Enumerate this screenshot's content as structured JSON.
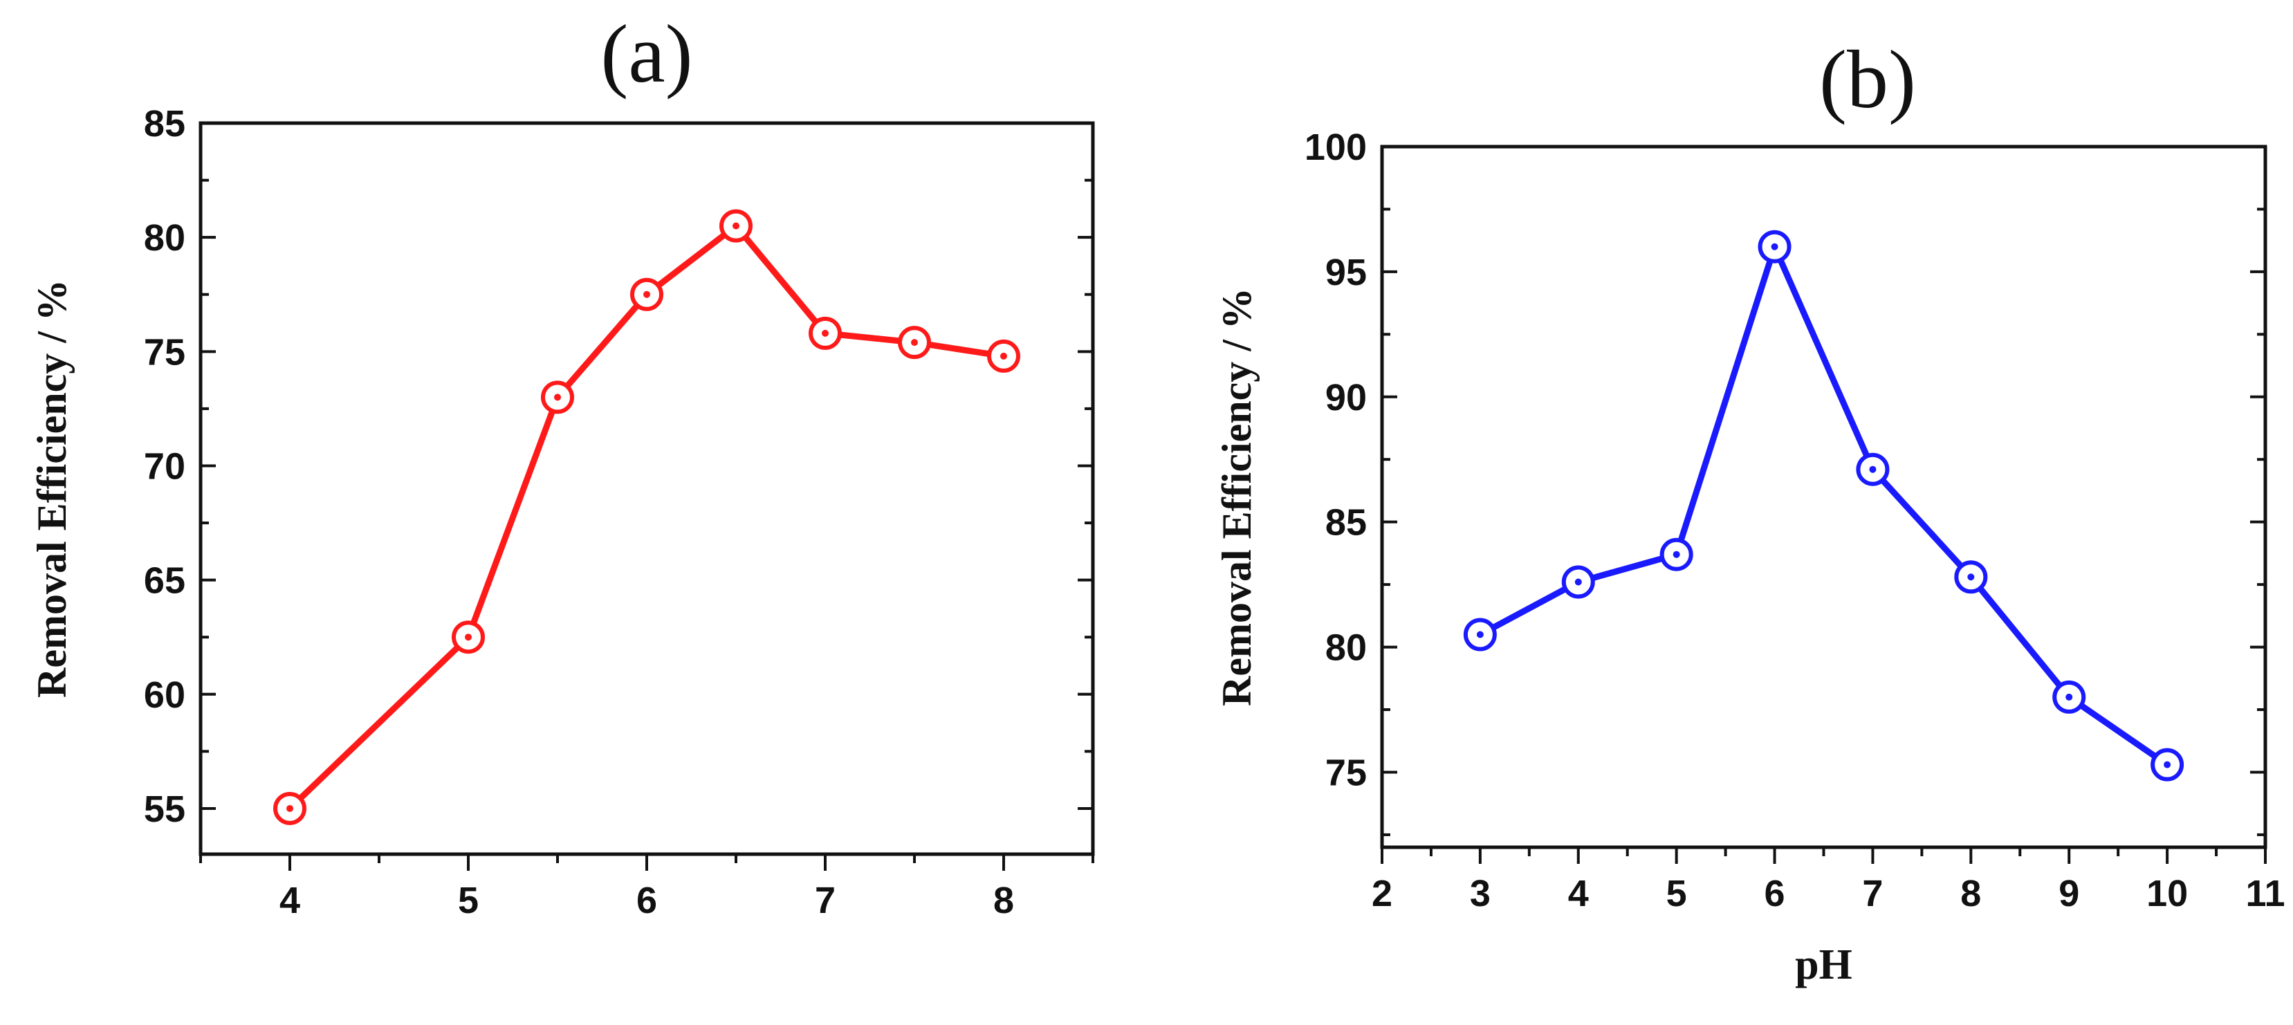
{
  "chart_data": [
    {
      "type": "line",
      "panel_label": "(a)",
      "title": "",
      "xlabel": "",
      "ylabel": "Removal Efficiency / %",
      "x": [
        4,
        5,
        5.5,
        6,
        6.5,
        7,
        7.5,
        8
      ],
      "xticks": [
        4,
        5,
        6,
        7,
        8
      ],
      "yticks": [
        55,
        60,
        65,
        70,
        75,
        80,
        85
      ],
      "xlim": [
        3.5,
        8.5
      ],
      "ylim": [
        53,
        85
      ],
      "grid": false,
      "series": [
        {
          "color": "#ff1a1a",
          "marker": "open-circle-dot",
          "values": [
            55.0,
            62.5,
            73.0,
            77.5,
            80.5,
            75.8,
            75.4,
            74.8
          ]
        }
      ]
    },
    {
      "type": "line",
      "panel_label": "(b)",
      "title": "",
      "xlabel": "pH",
      "ylabel": "Removal Efficiency / %",
      "x": [
        3,
        4,
        5,
        6,
        7,
        8,
        9,
        10
      ],
      "xticks": [
        2,
        3,
        4,
        5,
        6,
        7,
        8,
        9,
        10,
        11
      ],
      "yticks": [
        75,
        80,
        85,
        90,
        95,
        100
      ],
      "xlim": [
        2,
        11
      ],
      "ylim": [
        72,
        100
      ],
      "grid": false,
      "series": [
        {
          "color": "#1a1aff",
          "marker": "open-circle-dot",
          "values": [
            80.5,
            82.6,
            83.7,
            96.0,
            87.1,
            82.8,
            78.0,
            75.3
          ]
        }
      ]
    }
  ]
}
